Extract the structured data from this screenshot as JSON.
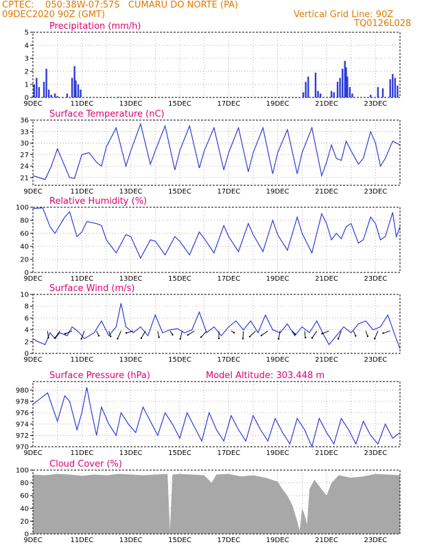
{
  "header": {
    "line1": "CPTEC:    050:38W-07:57S   CUMARU DO NORTE (PA)",
    "line2": "09DEC2020 90Z (GMT)",
    "grid_note": "Vertical Grid Line: 90Z",
    "code": "TQ0126L028"
  },
  "colors": {
    "header": "#e07800",
    "title": "#e0006e",
    "line": "#2e3bd6",
    "cloud": "#a8a8a8"
  },
  "x_labels": [
    "9DEC",
    "11DEC",
    "13DEC",
    "15DEC",
    "17DEC",
    "19DEC",
    "21DEC",
    "23DEC"
  ],
  "chart_data": [
    {
      "id": "precip",
      "type": "bar",
      "title": "Precipitation (mm/h)",
      "ylim": [
        0,
        5
      ],
      "yticks": [
        0,
        1,
        2,
        3,
        4,
        5
      ],
      "x_range_days": [
        9,
        24
      ],
      "points": [
        [
          9.05,
          1.0
        ],
        [
          9.15,
          1.5
        ],
        [
          9.25,
          0.8
        ],
        [
          9.45,
          1.2
        ],
        [
          9.55,
          2.2
        ],
        [
          9.65,
          0.6
        ],
        [
          9.75,
          0.2
        ],
        [
          9.9,
          0.3
        ],
        [
          10.0,
          0.1
        ],
        [
          10.4,
          0.3
        ],
        [
          10.6,
          1.5
        ],
        [
          10.7,
          2.4
        ],
        [
          10.75,
          1.3
        ],
        [
          10.85,
          1.0
        ],
        [
          10.95,
          0.6
        ],
        [
          12.5,
          0.05
        ],
        [
          13.0,
          0.05
        ],
        [
          18.5,
          0.05
        ],
        [
          20.05,
          0.4
        ],
        [
          20.15,
          1.2
        ],
        [
          20.25,
          1.6
        ],
        [
          20.55,
          1.9
        ],
        [
          20.65,
          0.5
        ],
        [
          20.75,
          0.3
        ],
        [
          21.2,
          0.5
        ],
        [
          21.3,
          0.4
        ],
        [
          21.45,
          1.2
        ],
        [
          21.55,
          1.5
        ],
        [
          21.65,
          2.2
        ],
        [
          21.75,
          2.8
        ],
        [
          21.8,
          2.3
        ],
        [
          21.85,
          1.6
        ],
        [
          21.95,
          0.8
        ],
        [
          22.05,
          0.3
        ],
        [
          22.8,
          0.2
        ],
        [
          23.1,
          0.8
        ],
        [
          23.3,
          0.7
        ],
        [
          23.6,
          1.4
        ],
        [
          23.7,
          1.8
        ],
        [
          23.8,
          1.5
        ],
        [
          23.9,
          0.9
        ]
      ]
    },
    {
      "id": "temp",
      "type": "line",
      "title": "Surface Temperature (nC)",
      "ylim": [
        19,
        36
      ],
      "yticks": [
        21,
        24,
        27,
        30,
        33,
        36
      ],
      "points": [
        [
          9.0,
          21.5
        ],
        [
          9.5,
          20.5
        ],
        [
          9.75,
          24
        ],
        [
          10.0,
          28.5
        ],
        [
          10.3,
          24
        ],
        [
          10.5,
          21
        ],
        [
          10.7,
          20.8
        ],
        [
          11.0,
          27
        ],
        [
          11.3,
          27.5
        ],
        [
          11.6,
          25
        ],
        [
          11.8,
          24
        ],
        [
          12.0,
          29
        ],
        [
          12.4,
          34
        ],
        [
          12.8,
          24
        ],
        [
          13.0,
          28
        ],
        [
          13.4,
          35
        ],
        [
          13.8,
          24.5
        ],
        [
          14.0,
          28
        ],
        [
          14.4,
          34.5
        ],
        [
          14.8,
          23
        ],
        [
          15.0,
          28
        ],
        [
          15.4,
          34.5
        ],
        [
          15.8,
          23.5
        ],
        [
          16.0,
          28
        ],
        [
          16.4,
          34
        ],
        [
          16.8,
          23
        ],
        [
          17.0,
          27.5
        ],
        [
          17.4,
          34
        ],
        [
          17.8,
          22.5
        ],
        [
          18.0,
          27.5
        ],
        [
          18.4,
          34
        ],
        [
          18.8,
          22
        ],
        [
          19.0,
          27.5
        ],
        [
          19.4,
          33.5
        ],
        [
          19.8,
          22
        ],
        [
          20.0,
          27.5
        ],
        [
          20.4,
          34
        ],
        [
          20.8,
          21.5
        ],
        [
          21.0,
          25
        ],
        [
          21.2,
          29.5
        ],
        [
          21.4,
          26
        ],
        [
          21.6,
          25.5
        ],
        [
          21.8,
          30.5
        ],
        [
          22.0,
          28
        ],
        [
          22.3,
          24.5
        ],
        [
          22.5,
          26
        ],
        [
          22.8,
          33
        ],
        [
          23.0,
          30
        ],
        [
          23.2,
          24
        ],
        [
          23.4,
          26
        ],
        [
          23.7,
          30.5
        ],
        [
          24.0,
          29.5
        ]
      ]
    },
    {
      "id": "rh",
      "type": "line",
      "title": "Relative Humidity (%)",
      "ylim": [
        0,
        100
      ],
      "yticks": [
        0,
        20,
        40,
        60,
        80,
        100
      ],
      "points": [
        [
          9.0,
          98
        ],
        [
          9.4,
          99
        ],
        [
          9.7,
          70
        ],
        [
          9.9,
          60
        ],
        [
          10.3,
          85
        ],
        [
          10.5,
          93
        ],
        [
          10.8,
          55
        ],
        [
          11.0,
          62
        ],
        [
          11.2,
          78
        ],
        [
          11.6,
          75
        ],
        [
          11.8,
          72
        ],
        [
          12.0,
          50
        ],
        [
          12.4,
          30
        ],
        [
          12.8,
          58
        ],
        [
          13.0,
          55
        ],
        [
          13.4,
          22
        ],
        [
          13.8,
          50
        ],
        [
          14.0,
          48
        ],
        [
          14.4,
          27
        ],
        [
          14.8,
          55
        ],
        [
          15.0,
          48
        ],
        [
          15.4,
          27
        ],
        [
          15.8,
          62
        ],
        [
          16.0,
          52
        ],
        [
          16.4,
          30
        ],
        [
          16.8,
          72
        ],
        [
          17.0,
          55
        ],
        [
          17.4,
          32
        ],
        [
          17.8,
          75
        ],
        [
          18.0,
          58
        ],
        [
          18.4,
          32
        ],
        [
          18.8,
          80
        ],
        [
          19.0,
          58
        ],
        [
          19.4,
          34
        ],
        [
          19.8,
          85
        ],
        [
          20.0,
          60
        ],
        [
          20.4,
          30
        ],
        [
          20.8,
          90
        ],
        [
          21.0,
          75
        ],
        [
          21.2,
          50
        ],
        [
          21.4,
          60
        ],
        [
          21.6,
          52
        ],
        [
          21.8,
          70
        ],
        [
          22.0,
          75
        ],
        [
          22.3,
          45
        ],
        [
          22.5,
          50
        ],
        [
          22.8,
          85
        ],
        [
          23.0,
          75
        ],
        [
          23.2,
          50
        ],
        [
          23.4,
          55
        ],
        [
          23.7,
          92
        ],
        [
          23.85,
          55
        ],
        [
          24.0,
          70
        ]
      ]
    },
    {
      "id": "wind",
      "type": "line",
      "title": "Surface Wind (m/s)",
      "ylim": [
        0,
        10
      ],
      "yticks": [
        0,
        2,
        4,
        6,
        8,
        10
      ],
      "points": [
        [
          9.0,
          2.5
        ],
        [
          9.2,
          2.0
        ],
        [
          9.5,
          1.5
        ],
        [
          9.7,
          3.5
        ],
        [
          9.9,
          2.5
        ],
        [
          10.1,
          3.5
        ],
        [
          10.4,
          3.0
        ],
        [
          10.6,
          4.5
        ],
        [
          10.9,
          3.5
        ],
        [
          11.1,
          2.5
        ],
        [
          11.5,
          3.5
        ],
        [
          11.8,
          5.5
        ],
        [
          12.1,
          3.0
        ],
        [
          12.4,
          4.5
        ],
        [
          12.6,
          8.5
        ],
        [
          12.8,
          4.5
        ],
        [
          13.1,
          3.5
        ],
        [
          13.4,
          4.5
        ],
        [
          13.7,
          3.0
        ],
        [
          14.0,
          6.5
        ],
        [
          14.3,
          3.5
        ],
        [
          14.6,
          4.0
        ],
        [
          14.9,
          4.2
        ],
        [
          15.2,
          3.5
        ],
        [
          15.5,
          4.0
        ],
        [
          15.8,
          7.0
        ],
        [
          16.1,
          3.5
        ],
        [
          16.4,
          4.5
        ],
        [
          16.7,
          3.0
        ],
        [
          17.0,
          4.5
        ],
        [
          17.3,
          5.5
        ],
        [
          17.6,
          4.0
        ],
        [
          17.9,
          5.5
        ],
        [
          18.2,
          3.5
        ],
        [
          18.5,
          6.5
        ],
        [
          18.8,
          4.0
        ],
        [
          19.1,
          3.5
        ],
        [
          19.4,
          5.0
        ],
        [
          19.7,
          3.0
        ],
        [
          20.0,
          4.5
        ],
        [
          20.3,
          3.5
        ],
        [
          20.6,
          5.5
        ],
        [
          20.9,
          3.0
        ],
        [
          21.1,
          1.5
        ],
        [
          21.4,
          3.0
        ],
        [
          21.7,
          4.5
        ],
        [
          22.0,
          3.5
        ],
        [
          22.3,
          5.0
        ],
        [
          22.6,
          5.5
        ],
        [
          22.9,
          4.0
        ],
        [
          23.2,
          4.5
        ],
        [
          23.5,
          6.5
        ],
        [
          23.8,
          3.0
        ],
        [
          24.0,
          0.8
        ]
      ]
    },
    {
      "id": "pres",
      "type": "line",
      "title": "Surface Pressure (hPa)",
      "model_altitude": "Model Altitude: 303.448 m",
      "ylim": [
        970,
        981.5
      ],
      "yticks": [
        970,
        972,
        974,
        976,
        978,
        980
      ],
      "points": [
        [
          9.0,
          977.5
        ],
        [
          9.3,
          978.5
        ],
        [
          9.6,
          979.5
        ],
        [
          9.8,
          977
        ],
        [
          10.0,
          974.5
        ],
        [
          10.3,
          979
        ],
        [
          10.5,
          978
        ],
        [
          10.8,
          973
        ],
        [
          11.0,
          976
        ],
        [
          11.2,
          980.5
        ],
        [
          11.4,
          976
        ],
        [
          11.6,
          972
        ],
        [
          11.8,
          977
        ],
        [
          12.1,
          974
        ],
        [
          12.4,
          972
        ],
        [
          12.6,
          976
        ],
        [
          12.9,
          974
        ],
        [
          13.2,
          972.5
        ],
        [
          13.5,
          977
        ],
        [
          13.8,
          974.5
        ],
        [
          14.1,
          972
        ],
        [
          14.4,
          976
        ],
        [
          14.7,
          974
        ],
        [
          15.0,
          971.5
        ],
        [
          15.3,
          976
        ],
        [
          15.6,
          973.5
        ],
        [
          15.9,
          971
        ],
        [
          16.2,
          976
        ],
        [
          16.5,
          973
        ],
        [
          16.8,
          971
        ],
        [
          17.1,
          975.5
        ],
        [
          17.4,
          973
        ],
        [
          17.7,
          971
        ],
        [
          18.0,
          975.5
        ],
        [
          18.3,
          973
        ],
        [
          18.6,
          971
        ],
        [
          18.9,
          975
        ],
        [
          19.2,
          972.5
        ],
        [
          19.5,
          970.5
        ],
        [
          19.8,
          975
        ],
        [
          20.1,
          973
        ],
        [
          20.4,
          970
        ],
        [
          20.7,
          975
        ],
        [
          21.0,
          972.5
        ],
        [
          21.3,
          970.5
        ],
        [
          21.6,
          975
        ],
        [
          21.9,
          973
        ],
        [
          22.2,
          970.5
        ],
        [
          22.5,
          974.5
        ],
        [
          22.8,
          972
        ],
        [
          23.1,
          970.5
        ],
        [
          23.4,
          974
        ],
        [
          23.7,
          971.5
        ],
        [
          24.0,
          972.5
        ]
      ]
    },
    {
      "id": "cloud",
      "type": "bar",
      "title": "Cloud Cover (%)",
      "ylim": [
        0,
        100
      ],
      "yticks": [
        0,
        20,
        40,
        60,
        80,
        100
      ],
      "points": [
        [
          9,
          93
        ],
        [
          9.5,
          92
        ],
        [
          10,
          94
        ],
        [
          10.5,
          93
        ],
        [
          11,
          91
        ],
        [
          11.5,
          93
        ],
        [
          12,
          92
        ],
        [
          12.5,
          94
        ],
        [
          13,
          93
        ],
        [
          13.5,
          92
        ],
        [
          14,
          93
        ],
        [
          14.5,
          94
        ],
        [
          14.6,
          5
        ],
        [
          14.7,
          93
        ],
        [
          15,
          94
        ],
        [
          15.5,
          93
        ],
        [
          16,
          92
        ],
        [
          16.3,
          80
        ],
        [
          16.5,
          93
        ],
        [
          17,
          94
        ],
        [
          17.5,
          90
        ],
        [
          18,
          92
        ],
        [
          18.5,
          88
        ],
        [
          19,
          82
        ],
        [
          19.2,
          70
        ],
        [
          19.4,
          60
        ],
        [
          19.6,
          45
        ],
        [
          19.8,
          20
        ],
        [
          19.9,
          5
        ],
        [
          20.0,
          40
        ],
        [
          20.1,
          30
        ],
        [
          20.2,
          15
        ],
        [
          20.3,
          70
        ],
        [
          20.5,
          85
        ],
        [
          21,
          60
        ],
        [
          21.2,
          80
        ],
        [
          21.5,
          92
        ],
        [
          22,
          88
        ],
        [
          22.5,
          90
        ],
        [
          23,
          94
        ],
        [
          23.5,
          93
        ],
        [
          24,
          92
        ]
      ]
    }
  ]
}
